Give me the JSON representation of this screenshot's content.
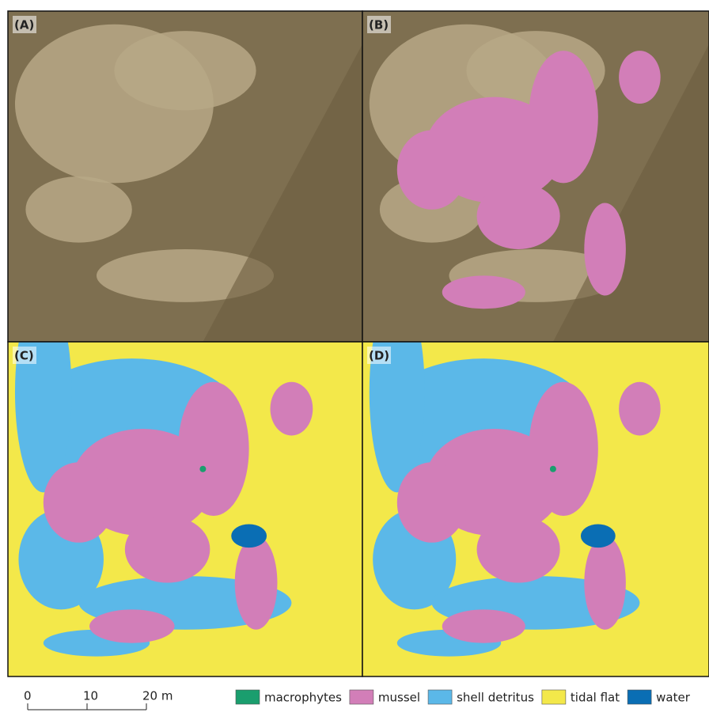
{
  "panels": [
    {
      "label": "(A)"
    },
    {
      "label": "(B)"
    },
    {
      "label": "(C)"
    },
    {
      "label": "(D)"
    }
  ],
  "scale_bar": {
    "ticks": [
      0,
      10,
      {
        "value": 20,
        "label": "20 m"
      }
    ]
  },
  "legend": {
    "items": [
      {
        "name": "macrophytes",
        "color": "#1a9e6e"
      },
      {
        "name": "mussel",
        "color": "#d27eb8"
      },
      {
        "name": "shell detritus",
        "color": "#5bb8e8"
      },
      {
        "name": "tidal flat",
        "color": "#f3e84a"
      },
      {
        "name": "water",
        "color": "#0a6eb4"
      }
    ]
  }
}
